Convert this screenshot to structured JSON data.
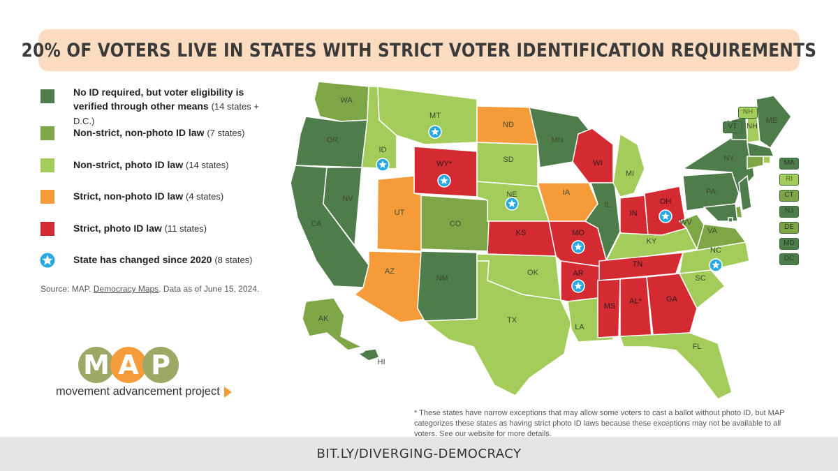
{
  "title": "20% OF VOTERS LIVE IN STATES WITH STRICT VOTER IDENTIFICATION REQUIREMENTS",
  "colors": {
    "no_id": "#4e7c4b",
    "non_strict_non_photo": "#7fa646",
    "non_strict_photo": "#a3cc5a",
    "strict_non_photo": "#f59b3a",
    "strict_photo": "#d42a32",
    "changed_star": "#29a9e1",
    "title_bg": "#fcdcc0"
  },
  "legend": {
    "no_id": {
      "label": "No ID required, but voter eligibility is verified through other means",
      "note": "(14 states + D.C.)"
    },
    "non_strict_non_photo": {
      "label": "Non-strict, non-photo ID law",
      "note": "(7 states)"
    },
    "non_strict_photo": {
      "label": "Non-strict, photo ID law",
      "note": "(14 states)"
    },
    "strict_non_photo": {
      "label": "Strict, non-photo ID law",
      "note": "(4 states)"
    },
    "strict_photo": {
      "label": "Strict, photo ID law",
      "note": "(11 states)"
    },
    "changed": {
      "label": "State has changed since 2020",
      "note": "(8 states)"
    }
  },
  "source": {
    "prefix": "Source: MAP.",
    "link": "Democracy Maps",
    "suffix": ". Data as of June 15, 2024."
  },
  "logo": {
    "letters": [
      "M",
      "A",
      "P"
    ],
    "tagline": "movement advancement project"
  },
  "footnote": "* These states have narrow exceptions that may allow some voters to cast a ballot without photo ID, but MAP categorizes these states as having strict photo ID laws because these exceptions may not be available to all voters. See our website for more details.",
  "footer": "BIT.LY/DIVERGING-DEMOCRACY",
  "map": {
    "states": {
      "WA": {
        "label": "WA",
        "cat": "non_strict_non_photo"
      },
      "OR": {
        "label": "OR",
        "cat": "no_id"
      },
      "CA": {
        "label": "CA",
        "cat": "no_id"
      },
      "NV": {
        "label": "NV",
        "cat": "no_id"
      },
      "ID": {
        "label": "ID",
        "cat": "non_strict_photo",
        "changed": true
      },
      "MT": {
        "label": "MT",
        "cat": "non_strict_photo",
        "changed": true
      },
      "WY": {
        "label": "WY*",
        "cat": "strict_photo",
        "changed": true
      },
      "UT": {
        "label": "UT",
        "cat": "strict_non_photo"
      },
      "AZ": {
        "label": "AZ",
        "cat": "strict_non_photo"
      },
      "CO": {
        "label": "CO",
        "cat": "non_strict_non_photo"
      },
      "NM": {
        "label": "NM",
        "cat": "no_id"
      },
      "ND": {
        "label": "ND",
        "cat": "strict_non_photo"
      },
      "SD": {
        "label": "SD",
        "cat": "non_strict_photo"
      },
      "NE": {
        "label": "NE",
        "cat": "non_strict_photo",
        "changed": true
      },
      "KS": {
        "label": "KS",
        "cat": "strict_photo"
      },
      "OK": {
        "label": "OK",
        "cat": "non_strict_photo"
      },
      "TX": {
        "label": "TX",
        "cat": "non_strict_photo"
      },
      "MN": {
        "label": "MN",
        "cat": "no_id"
      },
      "IA": {
        "label": "IA",
        "cat": "strict_non_photo"
      },
      "MO": {
        "label": "MO",
        "cat": "strict_photo",
        "changed": true
      },
      "AR": {
        "label": "AR",
        "cat": "strict_photo",
        "changed": true
      },
      "LA": {
        "label": "LA",
        "cat": "non_strict_photo"
      },
      "WI": {
        "label": "WI",
        "cat": "strict_photo"
      },
      "IL": {
        "label": "IL",
        "cat": "no_id"
      },
      "MI": {
        "label": "MI",
        "cat": "non_strict_photo"
      },
      "IN": {
        "label": "IN",
        "cat": "strict_photo"
      },
      "OH": {
        "label": "OH",
        "cat": "strict_photo",
        "changed": true
      },
      "KY": {
        "label": "KY",
        "cat": "non_strict_photo"
      },
      "TN": {
        "label": "TN",
        "cat": "strict_photo"
      },
      "MS": {
        "label": "MS",
        "cat": "strict_photo"
      },
      "AL": {
        "label": "AL*",
        "cat": "strict_photo"
      },
      "GA": {
        "label": "GA",
        "cat": "strict_photo"
      },
      "FL": {
        "label": "FL",
        "cat": "non_strict_photo"
      },
      "SC": {
        "label": "SC",
        "cat": "non_strict_photo"
      },
      "NC": {
        "label": "NC",
        "cat": "non_strict_photo",
        "changed": true
      },
      "VA": {
        "label": "VA",
        "cat": "non_strict_non_photo"
      },
      "WV": {
        "label": "WV",
        "cat": "non_strict_non_photo"
      },
      "PA": {
        "label": "PA",
        "cat": "no_id"
      },
      "NY": {
        "label": "NY",
        "cat": "no_id"
      },
      "VT": {
        "label": "VT",
        "cat": "no_id"
      },
      "NH": {
        "label": "NH",
        "cat": "non_strict_photo"
      },
      "ME": {
        "label": "ME",
        "cat": "no_id"
      },
      "MA": {
        "label": "MA",
        "cat": "no_id"
      },
      "RI": {
        "label": "RI",
        "cat": "non_strict_photo"
      },
      "CT": {
        "label": "CT",
        "cat": "non_strict_non_photo"
      },
      "NJ": {
        "label": "NJ",
        "cat": "no_id"
      },
      "DE": {
        "label": "DE",
        "cat": "non_strict_non_photo"
      },
      "MD": {
        "label": "MD",
        "cat": "no_id"
      },
      "DC": {
        "label": "DC",
        "cat": "no_id"
      },
      "AK": {
        "label": "AK",
        "cat": "non_strict_non_photo"
      },
      "HI": {
        "label": "HI",
        "cat": "no_id"
      }
    }
  }
}
